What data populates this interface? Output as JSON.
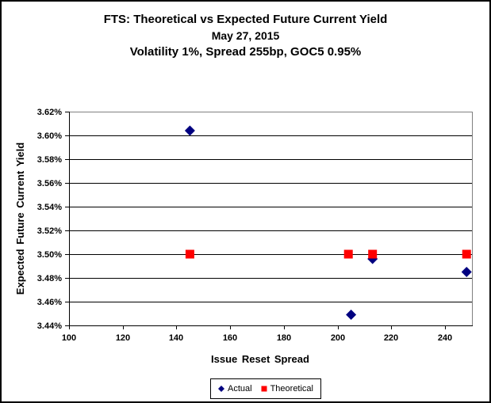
{
  "chart_data": {
    "type": "scatter",
    "title": "FTS: Theoretical vs Expected Future Current Yield",
    "subtitle_date": "May 27, 2015",
    "subtitle_params": "Volatility 1%, Spread 255bp, GOC5 0.95%",
    "xlabel": "Issue Reset Spread",
    "ylabel": "Expected Future Current Yield",
    "xlim": [
      100,
      250
    ],
    "ylim": [
      3.44,
      3.62
    ],
    "x_ticks": [
      100,
      120,
      140,
      160,
      180,
      200,
      220,
      240
    ],
    "x_tick_labels": [
      "100",
      "120",
      "140",
      "160",
      "180",
      "200",
      "220",
      "240"
    ],
    "y_ticks": [
      3.44,
      3.46,
      3.48,
      3.5,
      3.52,
      3.54,
      3.56,
      3.58,
      3.6,
      3.62
    ],
    "y_tick_labels": [
      "3.44%",
      "3.46%",
      "3.48%",
      "3.50%",
      "3.52%",
      "3.54%",
      "3.56%",
      "3.58%",
      "3.60%",
      "3.62%"
    ],
    "grid": "horizontal",
    "legend_position": "bottom",
    "colors": {
      "actual": "#000080",
      "theoretical": "#FF0000",
      "gridline": "#000000",
      "axis": "#000000",
      "plot_border": "#808080",
      "text": "#000000"
    },
    "series": [
      {
        "name": "Actual",
        "marker": "diamond",
        "color": "#000080",
        "points": [
          [
            145,
            3.604
          ],
          [
            205,
            3.449
          ],
          [
            213,
            3.496
          ],
          [
            248,
            3.485
          ]
        ]
      },
      {
        "name": "Theoretical",
        "marker": "square",
        "color": "#FF0000",
        "points": [
          [
            145,
            3.5
          ],
          [
            204,
            3.5
          ],
          [
            213,
            3.5
          ],
          [
            248,
            3.5
          ]
        ]
      }
    ]
  }
}
